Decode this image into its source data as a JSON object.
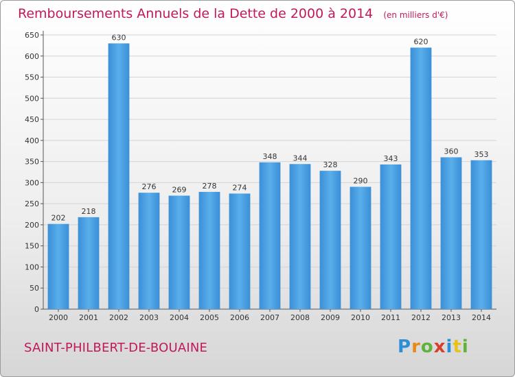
{
  "chart_data": {
    "type": "bar",
    "title": "Remboursements Annuels de la Dette de 2000 à 2014",
    "subtitle": "(en milliers d'€)",
    "categories": [
      "2000",
      "2001",
      "2002",
      "2003",
      "2004",
      "2005",
      "2006",
      "2007",
      "2008",
      "2009",
      "2010",
      "2011",
      "2012",
      "2013",
      "2014"
    ],
    "values": [
      202,
      218,
      630,
      276,
      269,
      278,
      274,
      348,
      344,
      328,
      290,
      343,
      620,
      360,
      353
    ],
    "ylim": [
      0,
      650
    ],
    "yticks": [
      0,
      50,
      100,
      150,
      200,
      250,
      300,
      350,
      400,
      450,
      500,
      550,
      600,
      650
    ],
    "grid": true,
    "bar_color": "#4ea3e3"
  },
  "footer": {
    "place": "SAINT-PHILBERT-DE-BOUAINE",
    "logo": "Proxiti"
  }
}
